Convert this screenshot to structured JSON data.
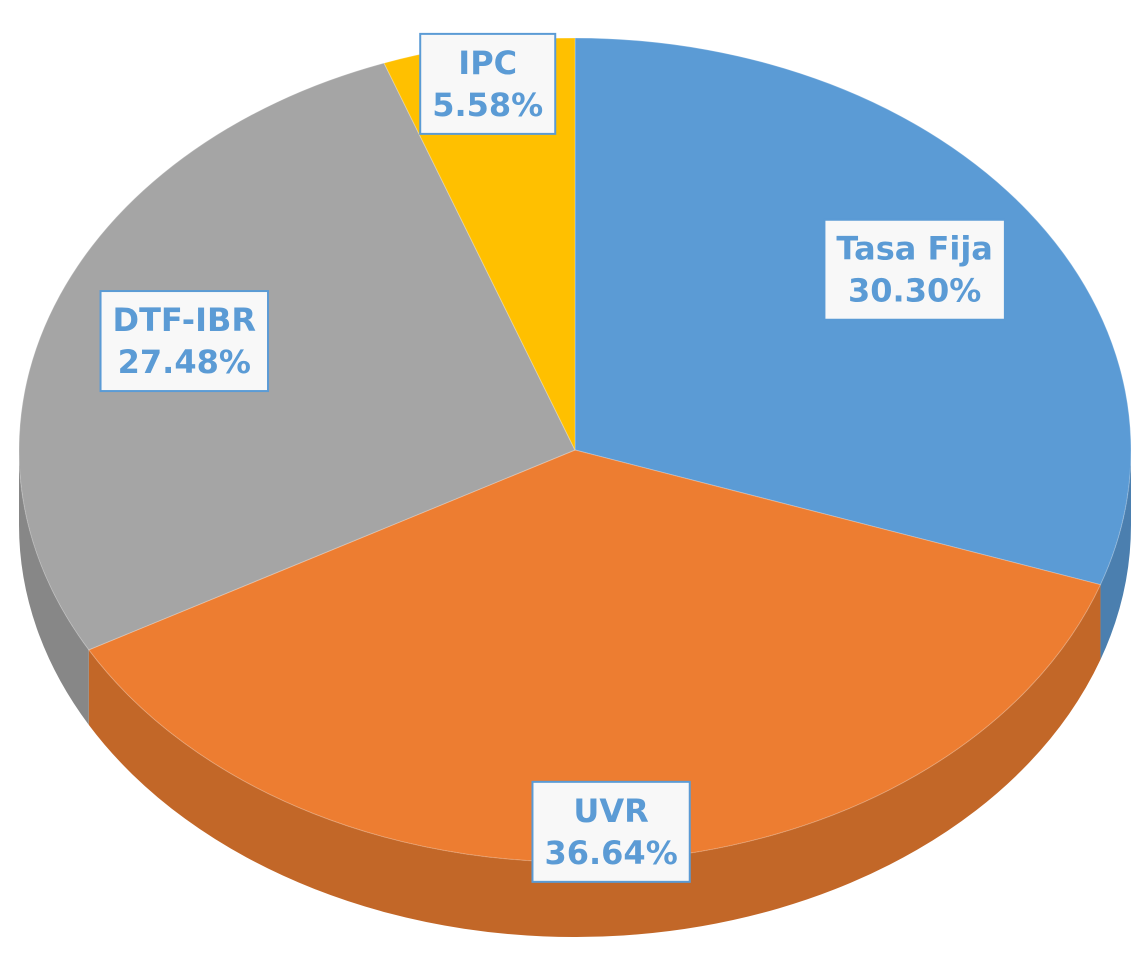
{
  "chart_data": {
    "type": "pie",
    "categories": [
      "Tasa Fija",
      "UVR",
      "DTF-IBR",
      "IPC"
    ],
    "values": [
      30.3,
      36.64,
      27.48,
      5.58
    ],
    "value_labels": [
      "30.30%",
      "36.64%",
      "27.48%",
      "5.58%"
    ],
    "colors": [
      "#5b9bd5",
      "#ed7d31",
      "#a5a5a5",
      "#ffc000"
    ]
  }
}
